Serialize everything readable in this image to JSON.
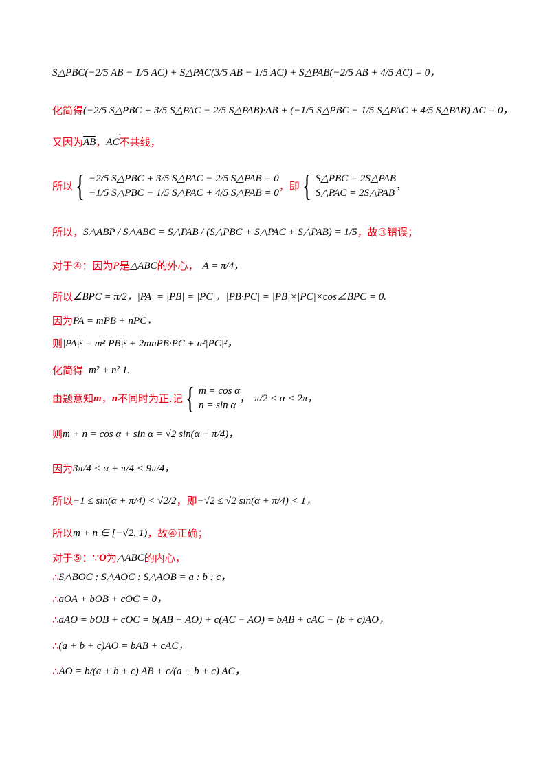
{
  "lines": {
    "l1": "S△PBC(−2/5 AB − 1/5 AC) + S△PAC(3/5 AB − 1/5 AC) + S△PAB(−2/5 AB + 4/5 AC) = 0，",
    "l2_label": "化简得",
    "l2_math": "(−2/5 S△PBC + 3/5 S△PAC − 2/5 S△PAB)·AB + (−1/5 S△PBC − 1/5 S△PAC + 4/5 S△PAB) AC = 0，",
    "l3_a": "又因为",
    "l3_b": "AB",
    "l3_c": "，",
    "l3_d": "AC",
    "l3_e": "不共线，",
    "l4_label": "所以",
    "l4_eq1": "−2/5 S△PBC + 3/5 S△PAC − 2/5 S△PAB = 0",
    "l4_eq2": "−1/5 S△PBC − 1/5 S△PAC + 4/5 S△PAB = 0",
    "l4_mid": "，即",
    "l4_res1": "S△PBC = 2S△PAB",
    "l4_res2": "S△PAC = 2S△PAB",
    "l4_end": "，",
    "l5_label": "所以，",
    "l5_math": "S△ABP / S△ABC = S△PAB / (S△PBC + S△PAC + S△PAB) = 1/5",
    "l5_end": "，故③错误；",
    "l6_a": "对于④：因为",
    "l6_b": "P",
    "l6_c": "是",
    "l6_d": "△ABC",
    "l6_e": "的外心，",
    "l6_f": "A = π/4",
    "l6_g": "，",
    "l7_label": "所以",
    "l7_math": "∠BPC = π/2，|PA| = |PB| = |PC|，|PB·PC| = |PB|×|PC|×cos∠BPC = 0.",
    "l8_label": "因为",
    "l8_math": "PA = mPB + nPC，",
    "l9_label": "则",
    "l9_math": "|PA|² = m²|PB|² + 2mnPB·PC + n²|PC|²，",
    "l10_label": "化简得",
    "l10_math": "m² + n²   1.",
    "l11_a": "由题意知",
    "l11_b": "m",
    "l11_c": "，",
    "l11_d": "n",
    "l11_e": "不同时为正.记",
    "l11_eq1": "m = cos α",
    "l11_eq2": "n = sin α",
    "l11_f": "，",
    "l11_g": "π/2 < α < 2π，",
    "l12_label": "则",
    "l12_math": "m + n = cos α + sin α = √2 sin(α + π/4)，",
    "l13_label": "因为",
    "l13_math": "3π/4 < α + π/4 < 9π/4，",
    "l14_label": "所以",
    "l14_math1": "−1 ≤ sin(α + π/4) < √2/2",
    "l14_mid": "，即",
    "l14_math2": "−√2 ≤ √2 sin(α + π/4) < 1，",
    "l15_label": "所以",
    "l15_math": "m + n ∈ [−√2, 1)",
    "l15_end": "，故④正确；",
    "l16_a": "对于⑤：",
    "l16_b": "∵",
    "l16_c": "O",
    "l16_d": "为",
    "l16_e": "△ABC",
    "l16_f": "的内心，",
    "l17_a": "∴",
    "l17_math": "S△BOC : S△AOC : S△AOB = a : b : c，",
    "l18_a": "∴",
    "l18_math": "aOA + bOB + cOC = 0，",
    "l19_a": "∴",
    "l19_math": "aAO = bOB + cOC = b(AB − AO) + c(AC − AO) = bAB + cAC − (b + c)AO，",
    "l20_a": "∴",
    "l20_math": "(a + b + c)AO = bAB + cAC，",
    "l21_a": "∴",
    "l21_math": "AO = b/(a + b + c) AB + c/(a + b + c) AC，"
  }
}
